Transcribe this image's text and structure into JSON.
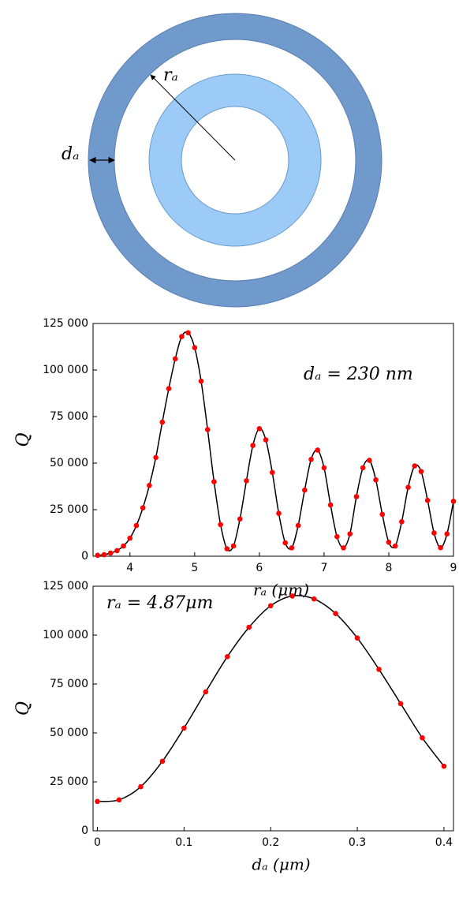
{
  "diagram": {
    "radius_label": "rₐ",
    "width_label": "dₐ"
  },
  "chart_data": [
    {
      "type": "scatter-line",
      "annotation": "dₐ = 230 nm",
      "xlabel": "rₐ (μm)",
      "ylabel": "Q",
      "marker_color": "#ff0000",
      "line_color": "#000000",
      "x": [
        3.5,
        3.6,
        3.7,
        3.8,
        3.9,
        4.0,
        4.1,
        4.2,
        4.3,
        4.4,
        4.5,
        4.6,
        4.7,
        4.8,
        4.9,
        5.0,
        5.1,
        5.2,
        5.3,
        5.4,
        5.5,
        5.6,
        5.7,
        5.8,
        5.9,
        6.0,
        6.1,
        6.2,
        6.3,
        6.4,
        6.5,
        6.6,
        6.7,
        6.8,
        6.9,
        7.0,
        7.1,
        7.2,
        7.3,
        7.4,
        7.5,
        7.6,
        7.7,
        7.8,
        7.9,
        8.0,
        8.1,
        8.2,
        8.3,
        8.4,
        8.5,
        8.6,
        8.7,
        8.8,
        8.9,
        9.0
      ],
      "values": [
        500,
        800,
        1700,
        3000,
        5500,
        9700,
        16500,
        26000,
        38000,
        53000,
        72000,
        90000,
        106000,
        118000,
        120000,
        112000,
        94000,
        68000,
        40000,
        17000,
        4000,
        5500,
        20000,
        40500,
        59500,
        68500,
        62500,
        45000,
        23000,
        7200,
        4500,
        16500,
        35500,
        52000,
        57000,
        47500,
        27500,
        10500,
        4500,
        12000,
        32000,
        47500,
        51500,
        41000,
        22500,
        7500,
        5500,
        18500,
        37000,
        48500,
        45500,
        30000,
        12500,
        4600,
        12000,
        29500
      ],
      "xlim": [
        3.43,
        9.0
      ],
      "xticks": [
        4,
        5,
        6,
        7,
        8,
        9
      ],
      "ylim": [
        0,
        125000
      ],
      "yticks": [
        0,
        {
          "value": 25000,
          "label": "25 000"
        },
        {
          "value": 50000,
          "label": "50 000"
        },
        {
          "value": 75000,
          "label": "75 000"
        },
        {
          "value": 100000,
          "label": "100 000"
        },
        {
          "value": 125000,
          "label": "125 000"
        }
      ]
    },
    {
      "type": "scatter-line",
      "annotation": "rₐ = 4.87μm",
      "xlabel": "dₐ (μm)",
      "ylabel": "Q",
      "marker_color": "#ff0000",
      "line_color": "#000000",
      "x": [
        0,
        0.025,
        0.05,
        0.075,
        0.1,
        0.125,
        0.15,
        0.175,
        0.2,
        0.225,
        0.25,
        0.275,
        0.3,
        0.325,
        0.35,
        0.375,
        0.4
      ],
      "values": [
        15000,
        15800,
        22500,
        35500,
        52500,
        71000,
        89000,
        104000,
        115000,
        120000,
        118500,
        111000,
        98500,
        82500,
        65000,
        47500,
        33000
      ],
      "xlim": [
        -0.005,
        0.411
      ],
      "xticks": [
        0,
        0.1,
        0.2,
        0.3,
        0.4
      ],
      "ylim": [
        0,
        125000
      ],
      "yticks": [
        0,
        {
          "value": 25000,
          "label": "25 000"
        },
        {
          "value": 50000,
          "label": "50 000"
        },
        {
          "value": 75000,
          "label": "75 000"
        },
        {
          "value": 100000,
          "label": "100 000"
        },
        {
          "value": 125000,
          "label": "125 000"
        }
      ]
    }
  ]
}
